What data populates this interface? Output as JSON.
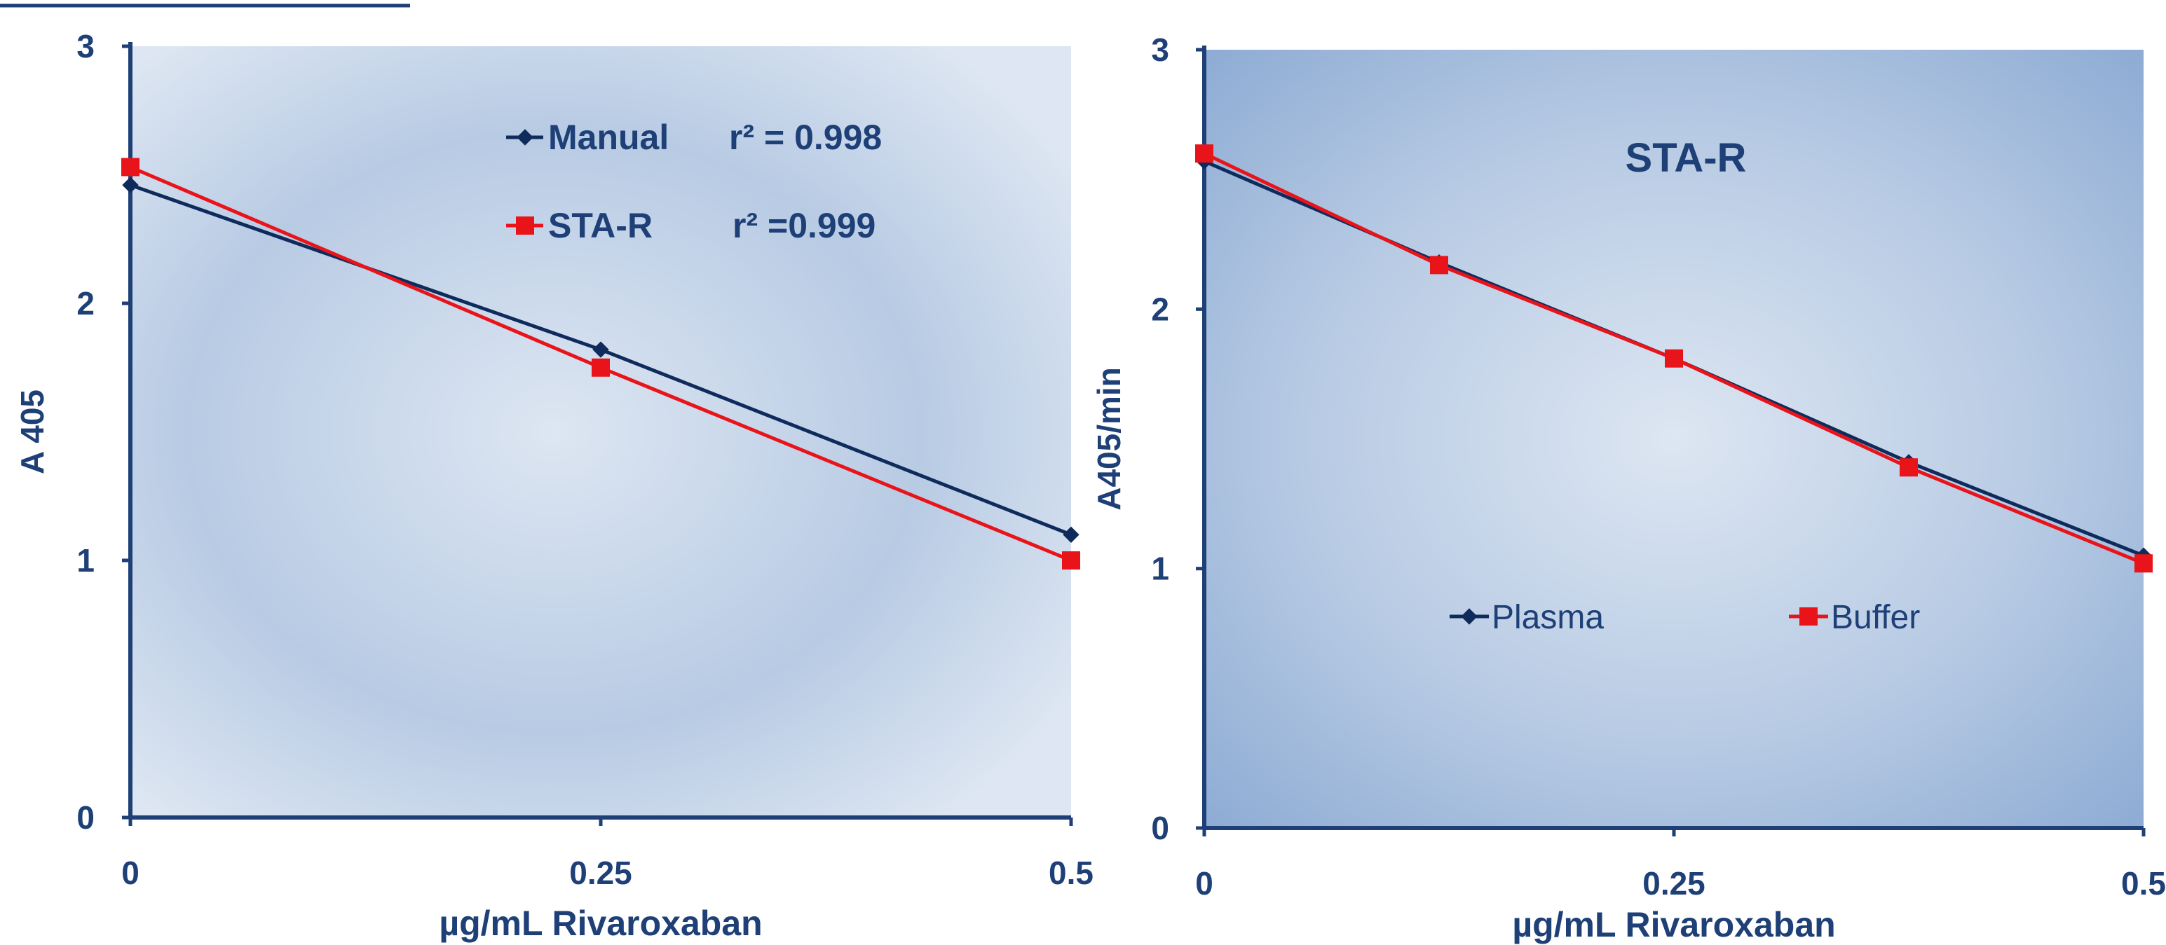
{
  "colors": {
    "axis": "#1e4077",
    "text": "#1e4077",
    "navy_series": "#0f2b5c",
    "red_series": "#e8141a",
    "panel_light": "#dde6f2",
    "panel_mid": "#b8cbe4",
    "panel_dark": "#8eacd4"
  },
  "chart_data": [
    {
      "type": "line",
      "title": "",
      "xlabel": "µg/mL Rivaroxaban",
      "ylabel": "A 405",
      "xlim": [
        0,
        0.5
      ],
      "ylim": [
        0,
        3
      ],
      "x_ticks": [
        "0",
        "0.25",
        "0.5"
      ],
      "y_ticks": [
        "0",
        "1",
        "2",
        "3"
      ],
      "legend_position": "top-center",
      "series": [
        {
          "name": "Manual",
          "annotation": "r² = 0.998",
          "color": "#0f2b5c",
          "marker": "diamond",
          "x": [
            0,
            0.25,
            0.5
          ],
          "y": [
            2.46,
            1.82,
            1.1
          ]
        },
        {
          "name": "STA-R",
          "annotation": "r² =0.999",
          "color": "#e8141a",
          "marker": "square",
          "x": [
            0,
            0.25,
            0.5
          ],
          "y": [
            2.53,
            1.75,
            1.0
          ]
        }
      ]
    },
    {
      "type": "line",
      "title": "STA-R",
      "xlabel": "µg/mL Rivaroxaban",
      "ylabel": "A405/min",
      "xlim": [
        0,
        0.5
      ],
      "ylim": [
        0,
        3
      ],
      "x_ticks": [
        "0",
        "0.25",
        "0.5"
      ],
      "y_ticks": [
        "0",
        "1",
        "2",
        "3"
      ],
      "legend_position": "center-bottom",
      "series": [
        {
          "name": "Plasma",
          "color": "#0f2b5c",
          "marker": "diamond",
          "x": [
            0,
            0.125,
            0.25,
            0.375,
            0.5
          ],
          "y": [
            2.57,
            2.18,
            1.81,
            1.41,
            1.05
          ]
        },
        {
          "name": "Buffer",
          "color": "#e8141a",
          "marker": "square",
          "x": [
            0,
            0.125,
            0.25,
            0.375,
            0.5
          ],
          "y": [
            2.6,
            2.17,
            1.81,
            1.39,
            1.02
          ]
        }
      ]
    }
  ]
}
